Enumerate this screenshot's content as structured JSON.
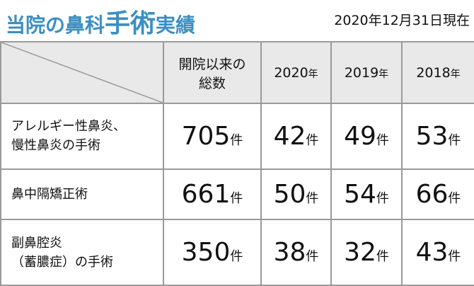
{
  "header": {
    "title": [
      "当院の鼻科",
      "手術",
      "実績"
    ],
    "date": "2020年12月31日現在"
  },
  "table": {
    "columns": [
      {
        "lines": [
          "開院以来の",
          "総数"
        ]
      },
      {
        "text": "2020",
        "unit": "年"
      },
      {
        "text": "2019",
        "unit": "年"
      },
      {
        "text": "2018",
        "unit": "年"
      }
    ],
    "rows": [
      {
        "label": [
          "アレルギー性鼻炎、",
          "慢性鼻炎の手術"
        ],
        "cells": [
          {
            "value": 705,
            "unit": "件"
          },
          {
            "value": 42,
            "unit": "件"
          },
          {
            "value": 49,
            "unit": "件"
          },
          {
            "value": 53,
            "unit": "件"
          }
        ]
      },
      {
        "label": [
          "鼻中隔矯正術"
        ],
        "cells": [
          {
            "value": 661,
            "unit": "件"
          },
          {
            "value": 50,
            "unit": "件"
          },
          {
            "value": 54,
            "unit": "件"
          },
          {
            "value": 66,
            "unit": "件"
          }
        ]
      },
      {
        "label": [
          "副鼻腔炎",
          "（蓄膿症）の手術"
        ],
        "cells": [
          {
            "value": 350,
            "unit": "件"
          },
          {
            "value": 38,
            "unit": "件"
          },
          {
            "value": 32,
            "unit": "件"
          },
          {
            "value": 43,
            "unit": "件"
          }
        ]
      }
    ]
  }
}
